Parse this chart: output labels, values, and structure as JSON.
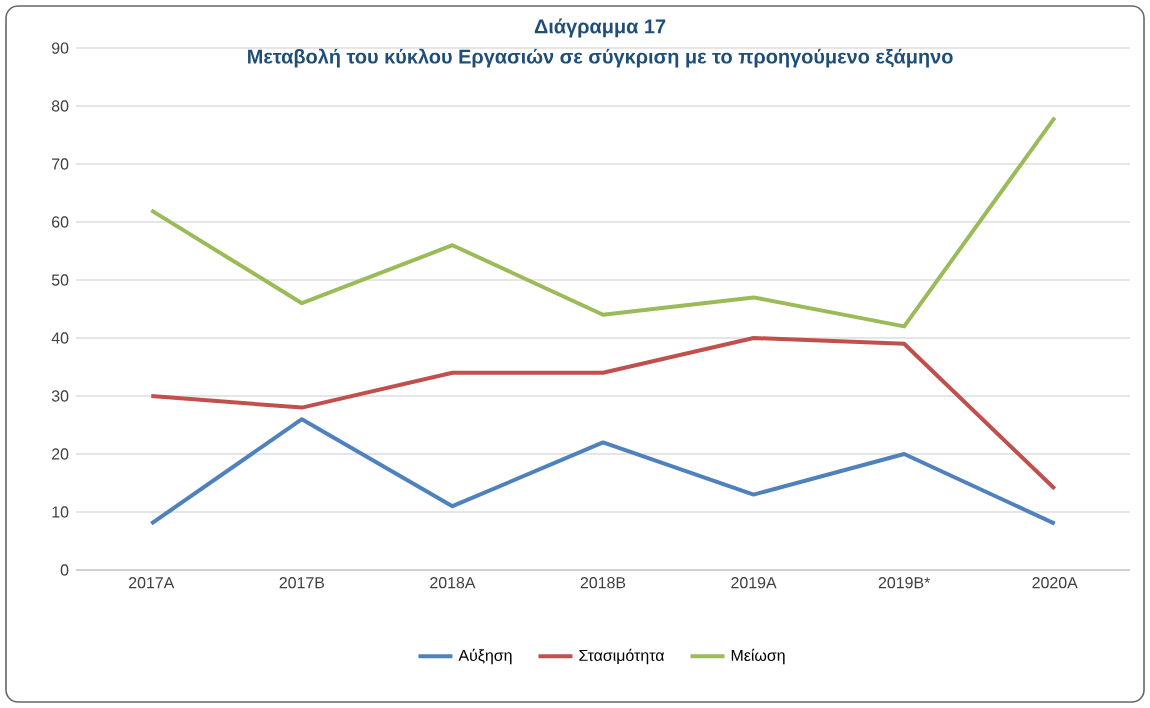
{
  "chart_data": {
    "type": "line",
    "title": "Διάγραμμα 17",
    "subtitle": "Μεταβολή του κύκλου Εργασιών σε σύγκριση με το προηγούμενο εξάμηνο",
    "categories": [
      "2017A",
      "2017B",
      "2018A",
      "2018B",
      "2019A",
      "2019B*",
      "2020A"
    ],
    "series": [
      {
        "name": "Αύξηση",
        "color": "#4f81bd",
        "values": [
          8,
          26,
          11,
          22,
          13,
          20,
          8
        ]
      },
      {
        "name": "Στασιμότητα",
        "color": "#c0504d",
        "values": [
          30,
          28,
          34,
          34,
          40,
          39,
          14
        ]
      },
      {
        "name": "Μείωση",
        "color": "#9bbb59",
        "values": [
          62,
          46,
          56,
          44,
          47,
          42,
          78
        ]
      }
    ],
    "ylim": [
      0,
      90
    ],
    "yticks": [
      0,
      10,
      20,
      30,
      40,
      50,
      60,
      70,
      80,
      90
    ],
    "grid": "y",
    "legend": "bottom",
    "marker": "none",
    "line_style": "solid"
  }
}
